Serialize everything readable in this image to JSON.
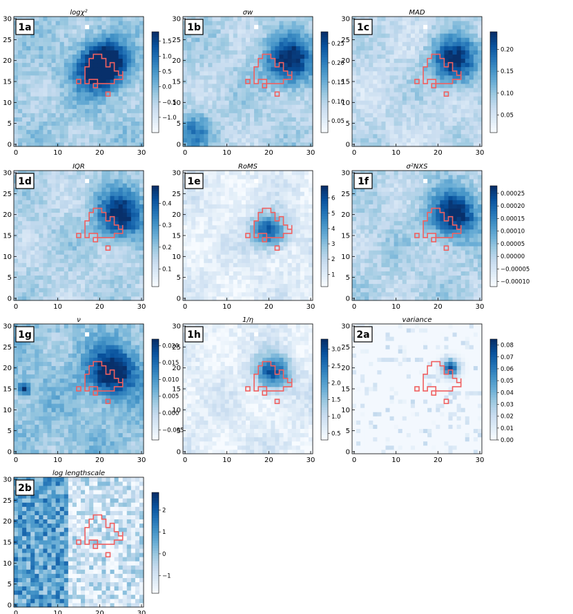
{
  "chart_data": [
    {
      "type": "heatmap",
      "panel_label": "1a",
      "title": "logχ²",
      "xlim": [
        0,
        30
      ],
      "ylim": [
        0,
        30
      ],
      "xticks": [
        "0",
        "10",
        "20",
        "30"
      ],
      "yticks": [
        "0",
        "5",
        "10",
        "15",
        "20",
        "25",
        "30"
      ],
      "colorbar": {
        "min": -1.5,
        "max": 1.8,
        "ticks": [
          "1.5",
          "1.0",
          "0.5",
          "0.0",
          "−0.5",
          "−1.0"
        ],
        "tick_values": [
          1.5,
          1.0,
          0.5,
          0.0,
          -0.5,
          -1.0
        ]
      },
      "hotspots": [
        {
          "x": 20,
          "y": 18,
          "v": 1.0,
          "r": 4
        },
        {
          "x": 22,
          "y": 20,
          "v": 0.7,
          "r": 3
        },
        {
          "x": 12,
          "y": 8,
          "v": 0.0,
          "r": 3
        }
      ],
      "base": 0.35
    },
    {
      "type": "heatmap",
      "panel_label": "1b",
      "title": "σw",
      "xlim": [
        0,
        30
      ],
      "ylim": [
        0,
        30
      ],
      "xticks": [
        "0",
        "10",
        "20",
        "30"
      ],
      "yticks": [
        "0",
        "5",
        "10",
        "15",
        "20",
        "25",
        "30"
      ],
      "colorbar": {
        "min": 0.02,
        "max": 0.28,
        "ticks": [
          "0.25",
          "0.20",
          "0.15",
          "0.10",
          "0.05"
        ],
        "tick_values": [
          0.25,
          0.2,
          0.15,
          0.1,
          0.05
        ]
      },
      "hotspots": [
        {
          "x": 25,
          "y": 20,
          "v": 1.0,
          "r": 4
        },
        {
          "x": 2,
          "y": 3,
          "v": 0.5,
          "r": 3
        }
      ],
      "base": 0.3
    },
    {
      "type": "heatmap",
      "panel_label": "1c",
      "title": "MAD",
      "xlim": [
        0,
        30
      ],
      "ylim": [
        0,
        30
      ],
      "xticks": [
        "0",
        "10",
        "20",
        "30"
      ],
      "yticks": [
        "0",
        "5",
        "10",
        "15",
        "20",
        "25",
        "30"
      ],
      "colorbar": {
        "min": 0.01,
        "max": 0.24,
        "ticks": [
          "0.20",
          "0.15",
          "0.10",
          "0.05"
        ],
        "tick_values": [
          0.2,
          0.15,
          0.1,
          0.05
        ]
      },
      "hotspots": [
        {
          "x": 24,
          "y": 20,
          "v": 1.0,
          "r": 4
        }
      ],
      "base": 0.25
    },
    {
      "type": "heatmap",
      "panel_label": "1d",
      "title": "IQR",
      "xlim": [
        0,
        30
      ],
      "ylim": [
        0,
        30
      ],
      "xticks": [
        "0",
        "10",
        "20",
        "30"
      ],
      "yticks": [
        "0",
        "5",
        "10",
        "15",
        "20",
        "25",
        "30"
      ],
      "colorbar": {
        "min": 0.02,
        "max": 0.48,
        "ticks": [
          "0.4",
          "0.3",
          "0.2",
          "0.1"
        ],
        "tick_values": [
          0.4,
          0.3,
          0.2,
          0.1
        ]
      },
      "hotspots": [
        {
          "x": 25,
          "y": 20,
          "v": 1.0,
          "r": 4
        }
      ],
      "base": 0.3
    },
    {
      "type": "heatmap",
      "panel_label": "1e",
      "title": "RoMS",
      "xlim": [
        0,
        30
      ],
      "ylim": [
        0,
        30
      ],
      "xticks": [
        "0",
        "10",
        "20",
        "30"
      ],
      "yticks": [
        "0",
        "5",
        "10",
        "15",
        "20",
        "25",
        "30"
      ],
      "colorbar": {
        "min": 0.2,
        "max": 6.8,
        "ticks": [
          "6",
          "5",
          "4",
          "3",
          "2",
          "1"
        ],
        "tick_values": [
          6,
          5,
          4,
          3,
          2,
          1
        ]
      },
      "hotspots": [
        {
          "x": 20,
          "y": 16,
          "v": 1.0,
          "r": 3
        }
      ],
      "base": 0.1
    },
    {
      "type": "heatmap",
      "panel_label": "1f",
      "title": "σ²NXS",
      "xlim": [
        0,
        30
      ],
      "ylim": [
        0,
        30
      ],
      "xticks": [
        "0",
        "10",
        "20",
        "30"
      ],
      "yticks": [
        "0",
        "5",
        "10",
        "15",
        "20",
        "25",
        "30"
      ],
      "colorbar": {
        "min": -0.00012,
        "max": 0.00028,
        "ticks": [
          "0.00025",
          "0.00020",
          "0.00015",
          "0.00010",
          "0.00005",
          "0.00000",
          "−0.00005",
          "−0.00010"
        ],
        "tick_values": [
          0.00025,
          0.0002,
          0.00015,
          0.0001,
          5e-05,
          0,
          -5e-05,
          -0.0001
        ]
      },
      "hotspots": [
        {
          "x": 24,
          "y": 20,
          "v": 1.0,
          "r": 4
        }
      ],
      "base": 0.3
    },
    {
      "type": "heatmap",
      "panel_label": "1g",
      "title": "ν",
      "xlim": [
        0,
        30
      ],
      "ylim": [
        0,
        30
      ],
      "xticks": [
        "0",
        "10",
        "20",
        "30"
      ],
      "yticks": [
        "0",
        "5",
        "10",
        "15",
        "20",
        "25",
        "30"
      ],
      "colorbar": {
        "min": -0.008,
        "max": 0.022,
        "ticks": [
          "0.020",
          "0.015",
          "0.010",
          "0.005",
          "0.000",
          "−0.005"
        ],
        "tick_values": [
          0.02,
          0.015,
          0.01,
          0.005,
          0.0,
          -0.005
        ]
      },
      "hotspots": [
        {
          "x": 23,
          "y": 19,
          "v": 1.0,
          "r": 4
        },
        {
          "x": 2,
          "y": 15,
          "v": 0.8,
          "r": 1
        }
      ],
      "base": 0.4
    },
    {
      "type": "heatmap",
      "panel_label": "1h",
      "title": "1/η",
      "xlim": [
        0,
        30
      ],
      "ylim": [
        0,
        30
      ],
      "xticks": [
        "0",
        "10",
        "20",
        "30"
      ],
      "yticks": [
        "0",
        "5",
        "10",
        "15",
        "20",
        "25",
        "30"
      ],
      "colorbar": {
        "min": 0.3,
        "max": 3.3,
        "ticks": [
          "3.0",
          "2.5",
          "2.0",
          "1.5",
          "1.0",
          "0.5"
        ],
        "tick_values": [
          3.0,
          2.5,
          2.0,
          1.5,
          1.0,
          0.5
        ]
      },
      "hotspots": [
        {
          "x": 21,
          "y": 19,
          "v": 1.0,
          "r": 3
        }
      ],
      "base": 0.1
    },
    {
      "type": "heatmap",
      "panel_label": "2a",
      "title": "variance",
      "xlim": [
        0,
        30
      ],
      "ylim": [
        0,
        30
      ],
      "xticks": [
        "0",
        "10",
        "20",
        "30"
      ],
      "yticks": [
        "0",
        "5",
        "10",
        "15",
        "20",
        "25",
        "30"
      ],
      "colorbar": {
        "min": 0.0,
        "max": 0.085,
        "ticks": [
          "0.08",
          "0.07",
          "0.06",
          "0.05",
          "0.04",
          "0.03",
          "0.02",
          "0.01",
          "0.00"
        ],
        "tick_values": [
          0.08,
          0.07,
          0.06,
          0.05,
          0.04,
          0.03,
          0.02,
          0.01,
          0.0
        ]
      },
      "hotspots": [
        {
          "x": 23,
          "y": 20,
          "v": 1.0,
          "r": 2
        }
      ],
      "base": 0.02
    },
    {
      "type": "heatmap",
      "panel_label": "2b",
      "title": "log lengthscale",
      "xlim": [
        0,
        30
      ],
      "ylim": [
        0,
        30
      ],
      "xticks": [
        "0",
        "10",
        "20",
        "30"
      ],
      "yticks": [
        "0",
        "5",
        "10",
        "15",
        "20",
        "25",
        "30"
      ],
      "colorbar": {
        "min": -1.8,
        "max": 2.8,
        "ticks": [
          "2",
          "1",
          "0",
          "−1"
        ],
        "tick_values": [
          2,
          1,
          0,
          -1
        ]
      },
      "hotspots": [
        {
          "x": 5,
          "y": 10,
          "v": 0.7,
          "r": 8
        }
      ],
      "base": 0.25
    }
  ],
  "region_outline_color": "#f06060",
  "colormap": "Blues"
}
